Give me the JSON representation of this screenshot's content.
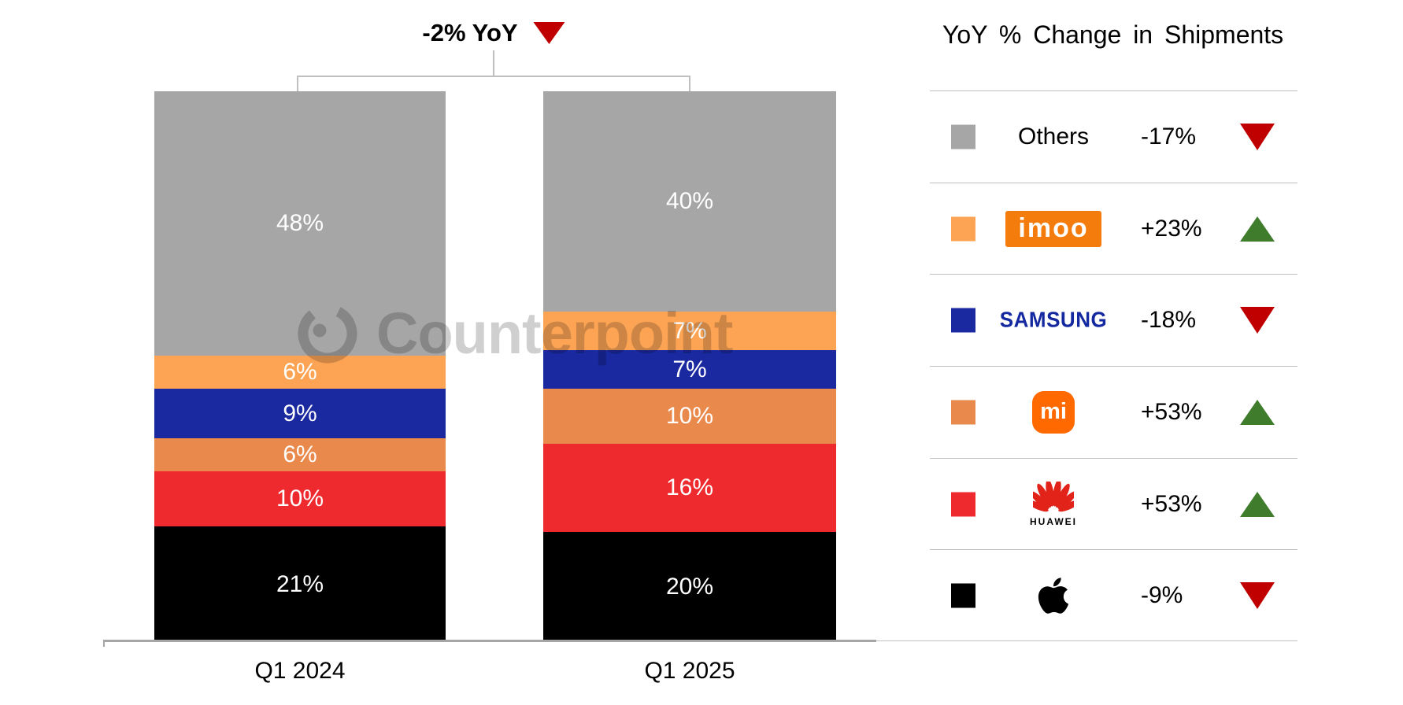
{
  "chart": {
    "title": "-2% YoY",
    "title_direction": "down"
  },
  "chart_data": {
    "type": "bar",
    "stacked": true,
    "title": "-2% YoY",
    "categories": [
      "Q1 2024",
      "Q1 2025"
    ],
    "series_order": "top_to_bottom",
    "series": [
      {
        "name": "Others",
        "values": [
          48,
          40
        ],
        "color": "#a6a6a6"
      },
      {
        "name": "imoo",
        "values": [
          6,
          7
        ],
        "color": "#fca454"
      },
      {
        "name": "Samsung",
        "values": [
          9,
          7
        ],
        "color": "#1b29a0"
      },
      {
        "name": "Xiaomi",
        "values": [
          6,
          10
        ],
        "color": "#e98a4c"
      },
      {
        "name": "Huawei",
        "values": [
          10,
          16
        ],
        "color": "#ee2a2e"
      },
      {
        "name": "Apple",
        "values": [
          21,
          20
        ],
        "color": "#000000"
      }
    ],
    "value_suffix": "%",
    "ylim": [
      0,
      100
    ],
    "annotation": "-2% YoY",
    "legend_position": "right"
  },
  "legend": {
    "title": "YoY % Change in Shipments",
    "rows": [
      {
        "brand": "Others",
        "brand_label": "Others",
        "change": "-17%",
        "direction": "down",
        "swatch_color": "#a6a6a6"
      },
      {
        "brand": "imoo",
        "brand_label": "imoo",
        "change": "+23%",
        "direction": "up",
        "swatch_color": "#fca454"
      },
      {
        "brand": "Samsung",
        "brand_label": "SAMSUNG",
        "change": "-18%",
        "direction": "down",
        "swatch_color": "#1b29a0"
      },
      {
        "brand": "Xiaomi",
        "brand_label": "mi",
        "change": "+53%",
        "direction": "up",
        "swatch_color": "#e98a4c"
      },
      {
        "brand": "Huawei",
        "brand_label": "HUAWEI",
        "change": "+53%",
        "direction": "up",
        "swatch_color": "#ee2a2e"
      },
      {
        "brand": "Apple",
        "brand_label": "",
        "change": "-9%",
        "direction": "down",
        "swatch_color": "#000000"
      }
    ]
  },
  "watermark": {
    "text": "Counterpoint"
  },
  "colors": {
    "up_green": "#3f7d2c",
    "down_red": "#c00000",
    "imoo_logo_bg": "#f47c0c",
    "samsung_blue": "#1428a0",
    "xiaomi_logo_bg": "#ff6900",
    "huawei_red": "#e2231a",
    "axis_gray": "#a6a6a6",
    "bracket_gray": "#bfbfbf"
  }
}
